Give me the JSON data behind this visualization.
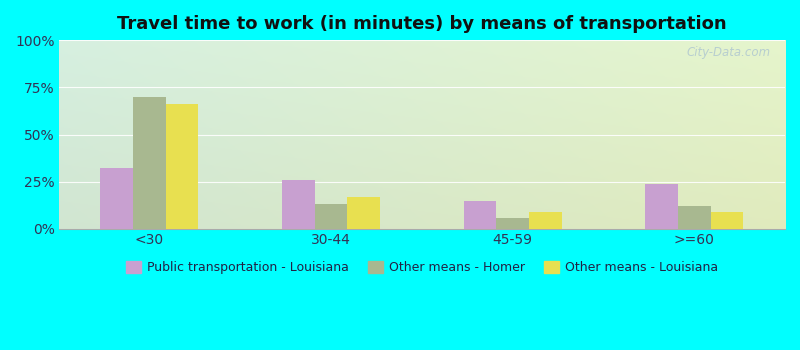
{
  "title": "Travel time to work (in minutes) by means of transportation",
  "categories": [
    "<30",
    "30-44",
    "45-59",
    ">=60"
  ],
  "series": {
    "Public transportation - Louisiana": [
      32,
      26,
      15,
      24
    ],
    "Other means - Homer": [
      70,
      13,
      6,
      12
    ],
    "Other means - Louisiana": [
      66,
      17,
      9,
      9
    ]
  },
  "colors": {
    "Public transportation - Louisiana": "#c8a0d0",
    "Other means - Homer": "#a8b890",
    "Other means - Louisiana": "#e8e050"
  },
  "ylim": [
    0,
    100
  ],
  "yticks": [
    0,
    25,
    50,
    75,
    100
  ],
  "ytick_labels": [
    "0%",
    "25%",
    "50%",
    "75%",
    "100%"
  ],
  "background_color": "#00ffff",
  "bar_width": 0.18,
  "figure_size": [
    8.0,
    3.5
  ],
  "dpi": 100,
  "watermark": "City-Data.com",
  "title_fontsize": 13,
  "tick_fontsize": 10,
  "legend_fontsize": 9
}
